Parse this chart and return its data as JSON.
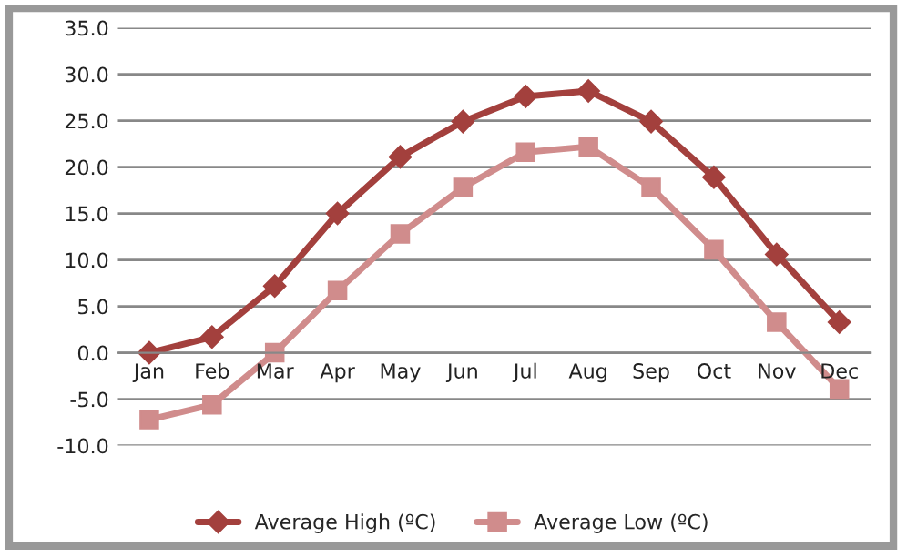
{
  "chart_data": {
    "type": "line",
    "categories": [
      "Jan",
      "Feb",
      "Mar",
      "Apr",
      "May",
      "Jun",
      "Jul",
      "Aug",
      "Sep",
      "Oct",
      "Nov",
      "Dec"
    ],
    "series": [
      {
        "name": "Average High (ºC)",
        "color": "#a3403d",
        "marker": "diamond",
        "values": [
          0,
          1.7,
          7.2,
          15,
          21.1,
          24.9,
          27.6,
          28.2,
          24.9,
          18.9,
          10.6,
          3.3
        ]
      },
      {
        "name": "Average Low (ºC)",
        "color": "#d08c8c",
        "marker": "square",
        "values": [
          -7.2,
          -5.6,
          0,
          6.7,
          12.8,
          17.8,
          21.6,
          22.2,
          17.8,
          11.1,
          3.3,
          -3.9
        ]
      }
    ],
    "ylim": [
      -10,
      35
    ],
    "yticks": [
      {
        "value": -10,
        "label": "-10.0"
      },
      {
        "value": -5,
        "label": "-5.0"
      },
      {
        "value": 0,
        "label": "0.0"
      },
      {
        "value": 5,
        "label": "5.0"
      },
      {
        "value": 10,
        "label": "10.0"
      },
      {
        "value": 15,
        "label": "15.0"
      },
      {
        "value": 20,
        "label": "20.0"
      },
      {
        "value": 25,
        "label": "25.0"
      },
      {
        "value": 30,
        "label": "30.0"
      },
      {
        "value": 35,
        "label": "35.0"
      }
    ],
    "grid": "y",
    "legend": "bottom",
    "line_style": "solid"
  }
}
